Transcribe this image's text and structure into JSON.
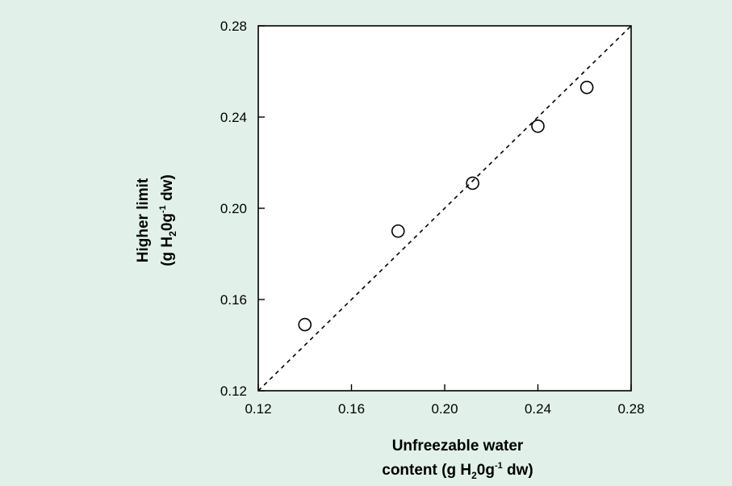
{
  "chart_data": {
    "type": "scatter",
    "title": "",
    "xlabel": {
      "line1": "Unfreezable water",
      "line2_pre": "content (g H",
      "line2_sub": "2",
      "line2_mid": "0g",
      "line2_sup": "-1",
      "line2_post": " dw)"
    },
    "ylabel": {
      "line1": "Higher limit",
      "line2_pre": "(g H",
      "line2_sub": "2",
      "line2_mid": "0g",
      "line2_sup": "-1",
      "line2_post": " dw)"
    },
    "xlim": [
      0.12,
      0.28
    ],
    "ylim": [
      0.12,
      0.28
    ],
    "xticks": [
      "0.12",
      "0.16",
      "0.20",
      "0.24",
      "0.28"
    ],
    "yticks": [
      "0.12",
      "0.16",
      "0.20",
      "0.24",
      "0.28"
    ],
    "points": [
      {
        "x": 0.14,
        "y": 0.149
      },
      {
        "x": 0.18,
        "y": 0.19
      },
      {
        "x": 0.212,
        "y": 0.211
      },
      {
        "x": 0.24,
        "y": 0.236
      },
      {
        "x": 0.261,
        "y": 0.253
      }
    ],
    "reference_line": {
      "style": "dashed",
      "from": [
        0.12,
        0.12
      ],
      "to": [
        0.28,
        0.28
      ]
    },
    "grid": false,
    "legend": "none"
  }
}
